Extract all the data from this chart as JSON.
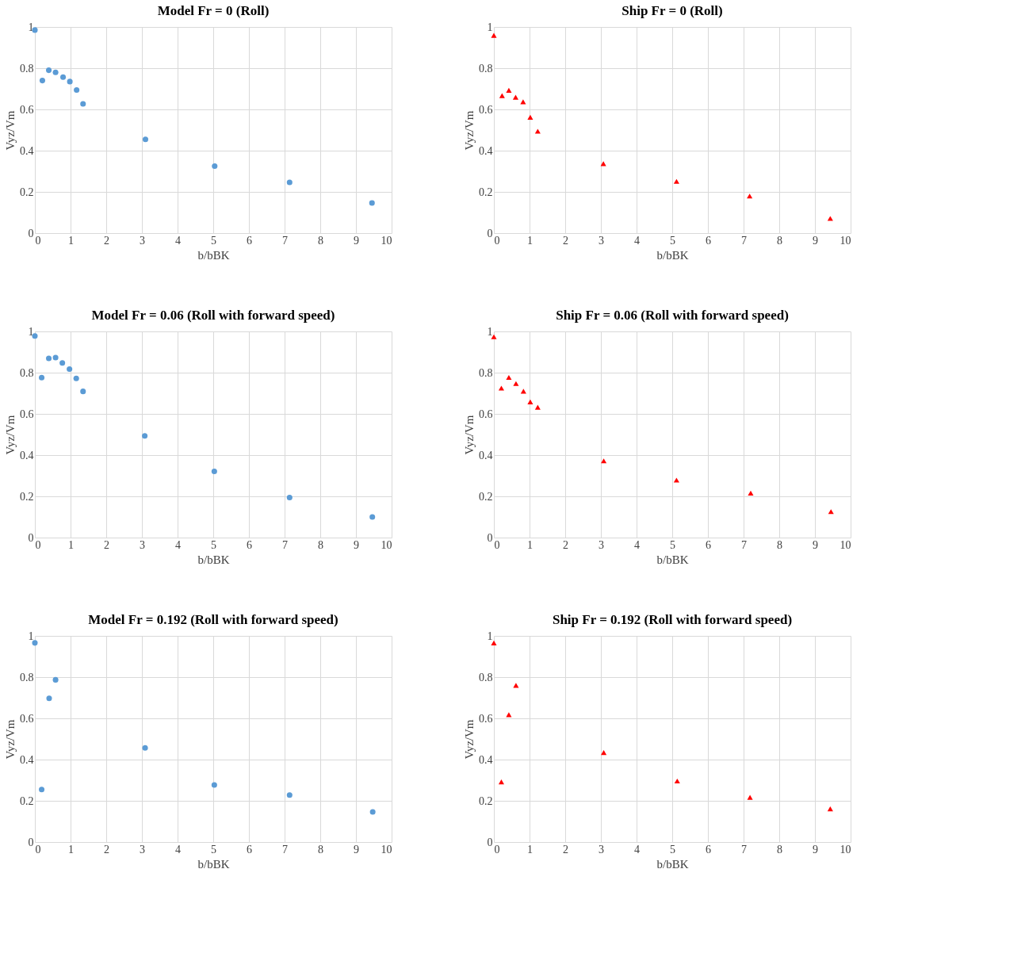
{
  "chart_data": [
    {
      "type": "scatter",
      "title": "Model Fr = 0 (Roll)",
      "xlabel": "b/bBK",
      "ylabel": "Vyz/Vm",
      "marker": "circle",
      "grid": true,
      "xlim": [
        0,
        10
      ],
      "ylim": [
        0,
        1
      ],
      "xticks": [
        0,
        1,
        2,
        3,
        4,
        5,
        6,
        7,
        8,
        9,
        10
      ],
      "yticks": [
        0,
        0.2,
        0.4,
        0.6,
        0.8,
        1
      ],
      "series": [
        {
          "color": "#5b9bd5",
          "x": [
            0,
            0.21,
            0.39,
            0.58,
            0.79,
            0.98,
            1.17,
            1.35,
            3.1,
            5.04,
            7.14,
            9.45
          ],
          "values": [
            0.985,
            0.74,
            0.79,
            0.78,
            0.757,
            0.735,
            0.694,
            0.627,
            0.455,
            0.325,
            0.246,
            0.146
          ]
        }
      ]
    },
    {
      "type": "scatter",
      "title": "Ship Fr = 0 (Roll)",
      "xlabel": "b/bBK",
      "ylabel": "Vyz/Vm",
      "marker": "triangle",
      "grid": true,
      "xlim": [
        0,
        10
      ],
      "ylim": [
        0,
        1
      ],
      "xticks": [
        0,
        1,
        2,
        3,
        4,
        5,
        6,
        7,
        8,
        9,
        10
      ],
      "yticks": [
        0,
        0.2,
        0.4,
        0.6,
        0.8,
        1
      ],
      "series": [
        {
          "color": "#ff0000",
          "x": [
            0,
            0.23,
            0.42,
            0.61,
            0.82,
            1.02,
            1.23,
            3.07,
            5.12,
            7.17,
            9.43
          ],
          "values": [
            0.959,
            0.667,
            0.693,
            0.659,
            0.637,
            0.562,
            0.494,
            0.337,
            0.251,
            0.18,
            0.071
          ]
        }
      ]
    },
    {
      "type": "scatter",
      "title": "Model Fr = 0.06 (Roll with forward  speed)",
      "xlabel": "b/bBK",
      "ylabel": "Vyz/Vm",
      "marker": "circle",
      "grid": true,
      "xlim": [
        0,
        10
      ],
      "ylim": [
        0,
        1
      ],
      "xticks": [
        0,
        1,
        2,
        3,
        4,
        5,
        6,
        7,
        8,
        9,
        10
      ],
      "yticks": [
        0,
        0.2,
        0.4,
        0.6,
        0.8,
        1
      ],
      "series": [
        {
          "color": "#5b9bd5",
          "x": [
            0,
            0.19,
            0.39,
            0.58,
            0.77,
            0.97,
            1.16,
            1.35,
            3.08,
            5.03,
            7.14,
            9.46
          ],
          "values": [
            0.978,
            0.776,
            0.869,
            0.873,
            0.847,
            0.817,
            0.772,
            0.709,
            0.493,
            0.321,
            0.194,
            0.1
          ]
        }
      ]
    },
    {
      "type": "scatter",
      "title": "Ship Fr = 0.06 (Roll with forward  speed)",
      "xlabel": "b/bBK",
      "ylabel": "Vyz/Vm",
      "marker": "triangle",
      "grid": true,
      "xlim": [
        0,
        10
      ],
      "ylim": [
        0,
        1
      ],
      "xticks": [
        0,
        1,
        2,
        3,
        4,
        5,
        6,
        7,
        8,
        9,
        10
      ],
      "yticks": [
        0,
        0.2,
        0.4,
        0.6,
        0.8,
        1
      ],
      "series": [
        {
          "color": "#ff0000",
          "x": [
            0,
            0.21,
            0.42,
            0.62,
            0.83,
            1.02,
            1.23,
            3.08,
            5.12,
            7.2,
            9.45
          ],
          "values": [
            0.974,
            0.725,
            0.777,
            0.747,
            0.71,
            0.658,
            0.632,
            0.372,
            0.279,
            0.216,
            0.126
          ]
        }
      ]
    },
    {
      "type": "scatter",
      "title": "Model Fr = 0.192 (Roll with forward  speed)",
      "xlabel": "b/bBK",
      "ylabel": "Vyz/Vm",
      "marker": "circle",
      "grid": true,
      "xlim": [
        0,
        10
      ],
      "ylim": [
        0,
        1
      ],
      "xticks": [
        0,
        1,
        2,
        3,
        4,
        5,
        6,
        7,
        8,
        9,
        10
      ],
      "yticks": [
        0,
        0.2,
        0.4,
        0.6,
        0.8,
        1
      ],
      "series": [
        {
          "color": "#5b9bd5",
          "x": [
            0,
            0.19,
            0.4,
            0.58,
            3.09,
            5.03,
            7.14,
            9.47
          ],
          "values": [
            0.966,
            0.255,
            0.697,
            0.787,
            0.457,
            0.277,
            0.228,
            0.146
          ]
        }
      ]
    },
    {
      "type": "scatter",
      "title": "Ship Fr = 0.192 (Roll with forward  speed)",
      "xlabel": "b/bBK",
      "ylabel": "Vyz/Vm",
      "marker": "triangle",
      "grid": true,
      "xlim": [
        0,
        10
      ],
      "ylim": [
        0,
        1
      ],
      "xticks": [
        0,
        1,
        2,
        3,
        4,
        5,
        6,
        7,
        8,
        9,
        10
      ],
      "yticks": [
        0,
        0.2,
        0.4,
        0.6,
        0.8,
        1
      ],
      "series": [
        {
          "color": "#ff0000",
          "x": [
            0,
            0.21,
            0.42,
            0.62,
            3.08,
            5.14,
            7.18,
            9.43
          ],
          "values": [
            0.966,
            0.292,
            0.618,
            0.76,
            0.434,
            0.296,
            0.217,
            0.161
          ]
        }
      ]
    }
  ]
}
